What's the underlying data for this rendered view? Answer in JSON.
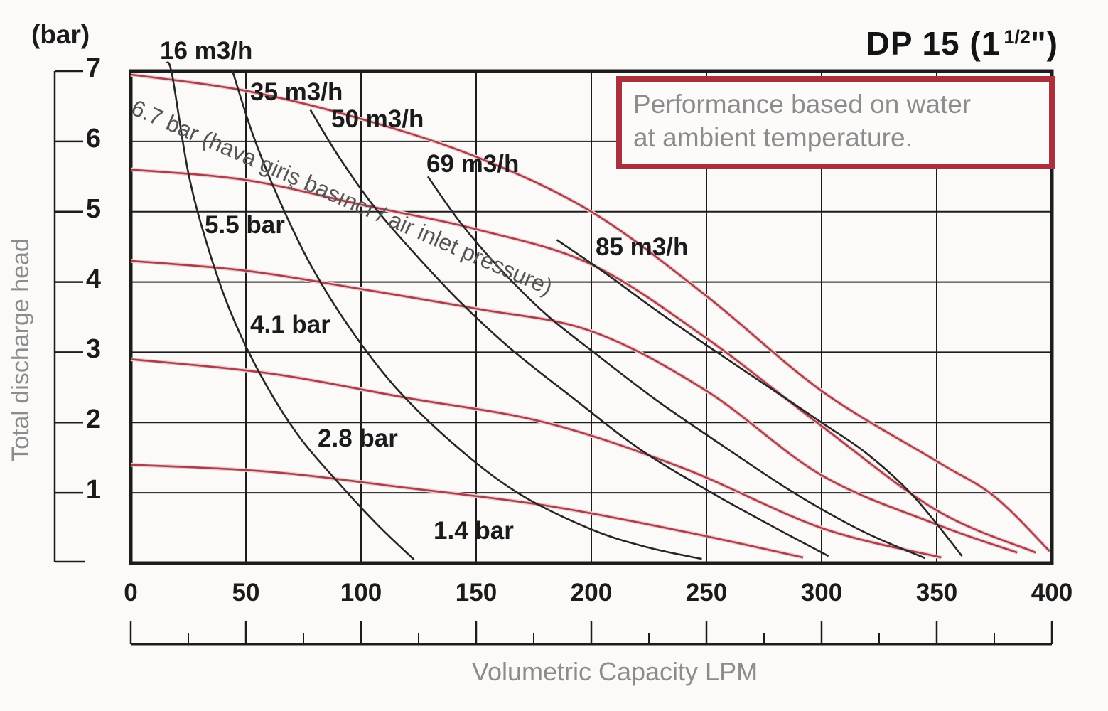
{
  "header": {
    "title_prefix": "DP 15 (1",
    "title_fraction": "1/2",
    "title_suffix": "\")",
    "note": {
      "line1": "Performance based on water",
      "line2": "at ambient temperature.",
      "border_color": "#ab303d",
      "text_color": "#8c8c8c"
    }
  },
  "chart_data": {
    "type": "line",
    "title": "DP 15 (1 1/2\")",
    "xlabel": "Volumetric Capacity LPM",
    "ylabel": "Total discharge head",
    "y_unit": "(bar)",
    "xlim": [
      0,
      400
    ],
    "ylim": [
      0,
      7
    ],
    "grid": true,
    "x_ticks": [
      0,
      50,
      100,
      150,
      200,
      250,
      300,
      350,
      400
    ],
    "x_minor_ticks": [
      25,
      75,
      125,
      175,
      225,
      275,
      325,
      375
    ],
    "y_ticks": [
      7,
      6,
      5,
      4,
      3,
      2,
      1
    ],
    "colors": {
      "grid": "#1c1c1c",
      "air_inlet_pressure_curve": "#a8404b",
      "air_inlet_pressure_halo": "#f0cdd0",
      "air_consumption_curve": "#262626",
      "label_text": "#1b1b1b",
      "gray_text": "#8c8c8c"
    },
    "series": [
      {
        "group": "air_inlet_pressure_bar",
        "label": "6.7 bar",
        "color": "#a8404b",
        "points": [
          [
            0,
            6.95
          ],
          [
            50,
            6.72
          ],
          [
            100,
            6.32
          ],
          [
            150,
            5.78
          ],
          [
            200,
            5.0
          ],
          [
            250,
            3.8
          ],
          [
            300,
            2.45
          ],
          [
            350,
            1.45
          ],
          [
            375,
            0.95
          ],
          [
            399,
            0.17
          ]
        ]
      },
      {
        "group": "air_inlet_pressure_bar",
        "label": "5.5 bar",
        "color": "#a8404b",
        "points": [
          [
            0,
            5.6
          ],
          [
            50,
            5.45
          ],
          [
            100,
            5.1
          ],
          [
            150,
            4.75
          ],
          [
            200,
            4.25
          ],
          [
            250,
            3.2
          ],
          [
            300,
            1.95
          ],
          [
            350,
            0.75
          ],
          [
            393,
            0.15
          ]
        ]
      },
      {
        "group": "air_inlet_pressure_bar",
        "label": "4.1 bar",
        "color": "#a8404b",
        "points": [
          [
            0,
            4.3
          ],
          [
            50,
            4.16
          ],
          [
            100,
            3.9
          ],
          [
            150,
            3.62
          ],
          [
            200,
            3.3
          ],
          [
            250,
            2.45
          ],
          [
            300,
            1.25
          ],
          [
            350,
            0.55
          ],
          [
            385,
            0.15
          ]
        ]
      },
      {
        "group": "air_inlet_pressure_bar",
        "label": "2.8 bar",
        "color": "#a8404b",
        "points": [
          [
            0,
            2.9
          ],
          [
            60,
            2.7
          ],
          [
            120,
            2.35
          ],
          [
            180,
            2.0
          ],
          [
            240,
            1.35
          ],
          [
            300,
            0.5
          ],
          [
            352,
            0.08
          ]
        ]
      },
      {
        "group": "air_inlet_pressure_bar",
        "label": "1.4 bar",
        "color": "#a8404b",
        "points": [
          [
            0,
            1.4
          ],
          [
            60,
            1.3
          ],
          [
            120,
            1.07
          ],
          [
            180,
            0.82
          ],
          [
            240,
            0.45
          ],
          [
            292,
            0.08
          ]
        ]
      },
      {
        "group": "air_consumption_m3h",
        "label": "16 m3/h",
        "color": "#262626",
        "points": [
          [
            15.5,
            7.13
          ],
          [
            18,
            6.94
          ],
          [
            25,
            5.55
          ],
          [
            33,
            4.55
          ],
          [
            43,
            3.6
          ],
          [
            56,
            2.7
          ],
          [
            72,
            1.85
          ],
          [
            90,
            1.15
          ],
          [
            107,
            0.55
          ],
          [
            123,
            0.05
          ]
        ]
      },
      {
        "group": "air_consumption_m3h",
        "label": "35 m3/h",
        "color": "#262626",
        "points": [
          [
            44,
            7.02
          ],
          [
            53,
            6.1
          ],
          [
            64,
            5.2
          ],
          [
            78,
            4.25
          ],
          [
            95,
            3.35
          ],
          [
            115,
            2.5
          ],
          [
            140,
            1.7
          ],
          [
            168,
            1.0
          ],
          [
            200,
            0.48
          ],
          [
            225,
            0.22
          ],
          [
            248,
            0.06
          ]
        ]
      },
      {
        "group": "air_consumption_m3h",
        "label": "50 m3/h",
        "color": "#262626",
        "points": [
          [
            78,
            6.45
          ],
          [
            90,
            5.8
          ],
          [
            105,
            5.1
          ],
          [
            122,
            4.45
          ],
          [
            142,
            3.75
          ],
          [
            165,
            3.05
          ],
          [
            192,
            2.35
          ],
          [
            222,
            1.6
          ],
          [
            255,
            0.95
          ],
          [
            280,
            0.5
          ],
          [
            303,
            0.1
          ]
        ]
      },
      {
        "group": "air_consumption_m3h",
        "label": "69 m3/h",
        "color": "#262626",
        "points": [
          [
            129,
            5.5
          ],
          [
            143,
            4.85
          ],
          [
            160,
            4.2
          ],
          [
            180,
            3.55
          ],
          [
            203,
            2.95
          ],
          [
            229,
            2.3
          ],
          [
            258,
            1.65
          ],
          [
            288,
            1.0
          ],
          [
            318,
            0.45
          ],
          [
            345,
            0.07
          ]
        ]
      },
      {
        "group": "air_consumption_m3h",
        "label": "85 m3/h",
        "color": "#262626",
        "points": [
          [
            185,
            4.6
          ],
          [
            205,
            4.15
          ],
          [
            228,
            3.6
          ],
          [
            250,
            3.1
          ],
          [
            275,
            2.55
          ],
          [
            300,
            2.0
          ],
          [
            320,
            1.55
          ],
          [
            340,
            0.95
          ],
          [
            361,
            0.1
          ]
        ]
      }
    ],
    "curve_labels": [
      {
        "text": "16 m3/h",
        "fx": 12.7,
        "fy": 7.49
      },
      {
        "text": "35 m3/h",
        "fx": 51.9,
        "fy": 6.9
      },
      {
        "text": "50 m3/h",
        "fx": 87.0,
        "fy": 6.51
      },
      {
        "text": "69 m3/h",
        "fx": 128.4,
        "fy": 5.88
      },
      {
        "text": "85 m3/h",
        "fx": 201.9,
        "fy": 4.69
      },
      {
        "text": "5.5 bar",
        "fx": 32.1,
        "fy": 5.01
      },
      {
        "text": "4.1 bar",
        "fx": 51.9,
        "fy": 3.59
      },
      {
        "text": "2.8 bar",
        "fx": 81.2,
        "fy": 1.97
      },
      {
        "text": "1.4 bar",
        "fx": 131.5,
        "fy": 0.66
      }
    ],
    "rotated_label": {
      "text": "6.7 bar (hava giriş basıncı / air inlet pressure)",
      "fx": 3.1,
      "fy": 6.67,
      "angle": 23.5,
      "color": "#555555"
    }
  }
}
